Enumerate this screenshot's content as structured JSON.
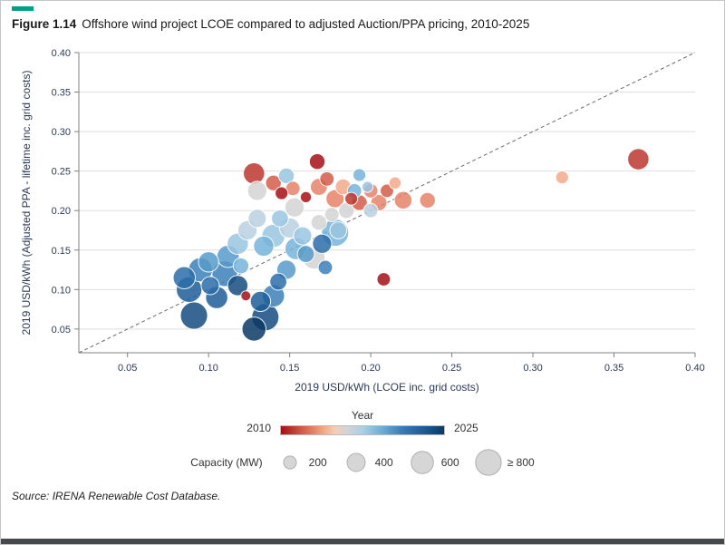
{
  "figure": {
    "label": "Figure 1.14",
    "title": "Offshore wind project LCOE compared to adjusted Auction/PPA pricing, 2010-2025",
    "source": "Source: IRENA Renewable Cost Database.",
    "accent_color": "#00a08b"
  },
  "chart_data": {
    "type": "scatter",
    "subtype": "bubble",
    "title": "Offshore wind project LCOE compared to adjusted Auction/PPA pricing, 2010-2025",
    "xlabel": "2019 USD/kWh (LCOE inc. grid costs)",
    "ylabel": "2019 USD/kWh (Adjusted PPA - lifetime inc. grid costs)",
    "xlim": [
      0.02,
      0.4
    ],
    "ylim": [
      0.02,
      0.4
    ],
    "xticks": [
      0.05,
      0.1,
      0.15,
      0.2,
      0.25,
      0.3,
      0.35,
      0.4
    ],
    "yticks": [
      0.05,
      0.1,
      0.15,
      0.2,
      0.25,
      0.3,
      0.35,
      0.4
    ],
    "grid": "horizontal",
    "parity_line": true,
    "point_format": [
      "lcoe_usd_kwh",
      "ppa_usd_kwh",
      "year",
      "capacity_mw"
    ],
    "points": [
      [
        0.085,
        0.115,
        2022,
        600
      ],
      [
        0.088,
        0.1,
        2023,
        800
      ],
      [
        0.091,
        0.067,
        2024,
        900
      ],
      [
        0.095,
        0.125,
        2021,
        700
      ],
      [
        0.1,
        0.135,
        2020,
        500
      ],
      [
        0.101,
        0.105,
        2022,
        400
      ],
      [
        0.105,
        0.09,
        2023,
        600
      ],
      [
        0.11,
        0.12,
        2021,
        800
      ],
      [
        0.112,
        0.142,
        2020,
        600
      ],
      [
        0.118,
        0.105,
        2024,
        500
      ],
      [
        0.12,
        0.13,
        2019,
        300
      ],
      [
        0.123,
        0.092,
        2010,
        120
      ],
      [
        0.128,
        0.05,
        2025,
        700
      ],
      [
        0.135,
        0.065,
        2024,
        900
      ],
      [
        0.132,
        0.085,
        2023,
        500
      ],
      [
        0.14,
        0.092,
        2021,
        600
      ],
      [
        0.143,
        0.11,
        2022,
        350
      ],
      [
        0.148,
        0.125,
        2020,
        450
      ],
      [
        0.172,
        0.128,
        2021,
        250
      ],
      [
        0.118,
        0.158,
        2018,
        550
      ],
      [
        0.124,
        0.175,
        2017,
        450
      ],
      [
        0.13,
        0.19,
        2017,
        400
      ],
      [
        0.134,
        0.155,
        2019,
        500
      ],
      [
        0.14,
        0.168,
        2018,
        650
      ],
      [
        0.144,
        0.19,
        2018,
        350
      ],
      [
        0.15,
        0.178,
        2017,
        500
      ],
      [
        0.154,
        0.152,
        2019,
        600
      ],
      [
        0.158,
        0.168,
        2018,
        400
      ],
      [
        0.16,
        0.145,
        2020,
        350
      ],
      [
        0.165,
        0.14,
        2016,
        600
      ],
      [
        0.17,
        0.158,
        2022,
        450
      ],
      [
        0.178,
        0.172,
        2019,
        900
      ],
      [
        0.168,
        0.185,
        2016,
        300
      ],
      [
        0.176,
        0.195,
        2016,
        250
      ],
      [
        0.18,
        0.175,
        2018,
        350
      ],
      [
        0.185,
        0.2,
        2016,
        300
      ],
      [
        0.19,
        0.225,
        2019,
        250
      ],
      [
        0.193,
        0.245,
        2019,
        200
      ],
      [
        0.198,
        0.23,
        2018,
        150
      ],
      [
        0.2,
        0.2,
        2017,
        250
      ],
      [
        0.153,
        0.204,
        2016,
        450
      ],
      [
        0.128,
        0.247,
        2011,
        550
      ],
      [
        0.13,
        0.225,
        2016,
        450
      ],
      [
        0.14,
        0.235,
        2012,
        300
      ],
      [
        0.145,
        0.222,
        2010,
        200
      ],
      [
        0.148,
        0.244,
        2018,
        300
      ],
      [
        0.152,
        0.228,
        2013,
        250
      ],
      [
        0.16,
        0.217,
        2010,
        150
      ],
      [
        0.167,
        0.262,
        2010,
        300
      ],
      [
        0.168,
        0.23,
        2013,
        350
      ],
      [
        0.173,
        0.24,
        2012,
        250
      ],
      [
        0.178,
        0.215,
        2013,
        400
      ],
      [
        0.183,
        0.23,
        2014,
        300
      ],
      [
        0.188,
        0.215,
        2011,
        200
      ],
      [
        0.193,
        0.21,
        2012,
        300
      ],
      [
        0.2,
        0.225,
        2013,
        250
      ],
      [
        0.205,
        0.21,
        2013,
        320
      ],
      [
        0.21,
        0.225,
        2012,
        220
      ],
      [
        0.215,
        0.235,
        2014,
        180
      ],
      [
        0.22,
        0.213,
        2013,
        380
      ],
      [
        0.235,
        0.213,
        2013,
        300
      ],
      [
        0.208,
        0.113,
        2010,
        220
      ],
      [
        0.318,
        0.242,
        2014,
        200
      ],
      [
        0.365,
        0.265,
        2011,
        550
      ]
    ],
    "color_scale": {
      "label": "Year",
      "min_year": 2010,
      "max_year": 2025,
      "min_label": "2010",
      "max_label": "2025",
      "stops": [
        {
          "t": 0.0,
          "color": "#a50f15"
        },
        {
          "t": 0.14,
          "color": "#d6604d"
        },
        {
          "t": 0.25,
          "color": "#f2a17e"
        },
        {
          "t": 0.33,
          "color": "#f6cdb6"
        },
        {
          "t": 0.4,
          "color": "#d4d4d4"
        },
        {
          "t": 0.5,
          "color": "#abcfe5"
        },
        {
          "t": 0.62,
          "color": "#6aaed6"
        },
        {
          "t": 0.75,
          "color": "#3579b5"
        },
        {
          "t": 0.88,
          "color": "#1d5a96"
        },
        {
          "t": 1.0,
          "color": "#0b3a66"
        }
      ]
    },
    "size_legend": {
      "label": "Capacity (MW)",
      "items": [
        {
          "label": "200",
          "mw": 200
        },
        {
          "label": "400",
          "mw": 400
        },
        {
          "label": "600",
          "mw": 600
        },
        {
          "label": "≥ 800",
          "mw": 800
        }
      ]
    }
  }
}
